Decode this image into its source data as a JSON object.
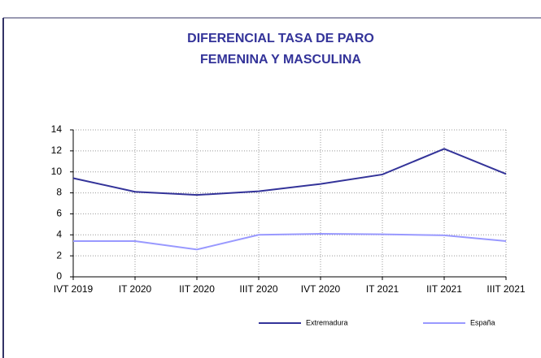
{
  "chart_data": {
    "type": "line",
    "title": [
      "DIFERENCIAL TASA DE PARO",
      "FEMENINA Y MASCULINA"
    ],
    "categories": [
      "IVT 2019",
      "IT 2020",
      "IIT 2020",
      "IIIT 2020",
      "IVT 2020",
      "IT 2021",
      "IIT 2021",
      "IIIT 2021"
    ],
    "series": [
      {
        "name": "Extremadura",
        "color": "#333399",
        "values": [
          9.4,
          8.1,
          7.8,
          8.15,
          8.85,
          9.75,
          12.2,
          9.8
        ]
      },
      {
        "name": "España",
        "color": "#9999ff",
        "values": [
          3.4,
          3.4,
          2.6,
          4.0,
          4.1,
          4.05,
          3.95,
          3.4
        ]
      }
    ],
    "ylim": [
      0,
      14
    ],
    "yticks": [
      0,
      2,
      4,
      6,
      8,
      10,
      12,
      14
    ],
    "grid": true,
    "legend": "bottom"
  }
}
